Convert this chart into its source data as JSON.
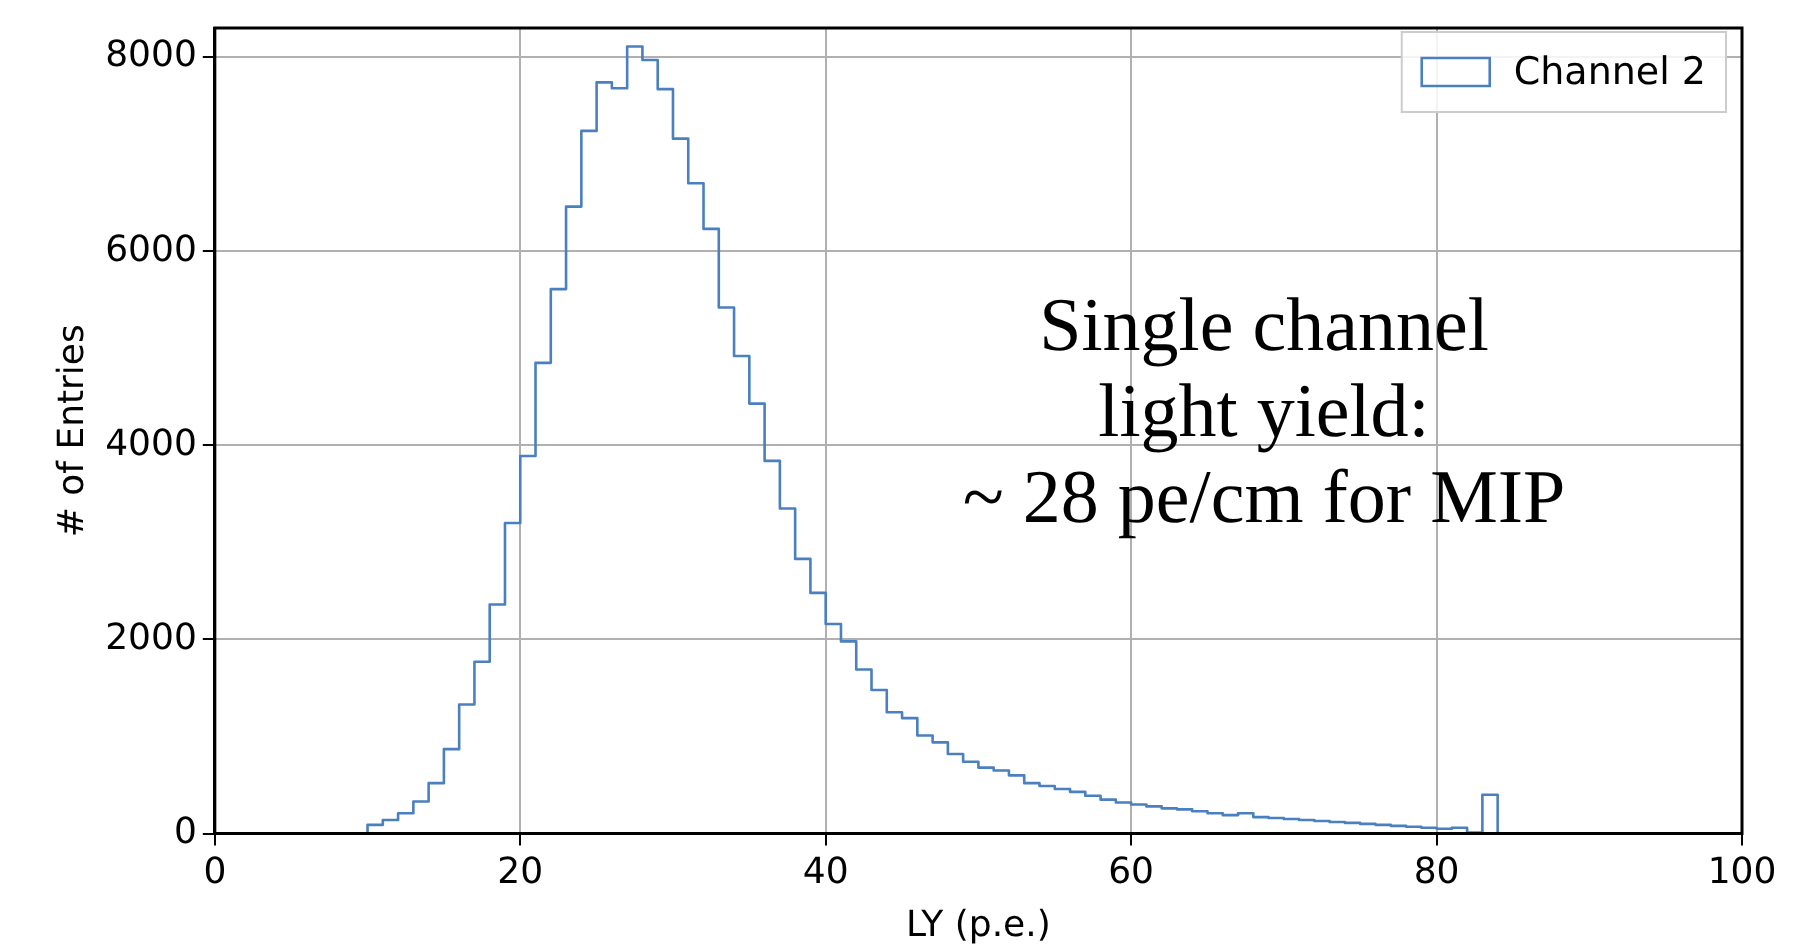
{
  "chart_data": {
    "type": "histogram",
    "xlabel": "LY (p.e.)",
    "ylabel": "# of Entries",
    "annotations": [
      "Single channel",
      "light yield:",
      "~ 28 pe/cm for MIP"
    ],
    "bins": [
      0,
      1,
      2,
      3,
      4,
      5,
      6,
      7,
      8,
      9,
      10,
      11,
      12,
      13,
      14,
      15,
      16,
      17,
      18,
      19,
      20,
      21,
      22,
      23,
      24,
      25,
      26,
      27,
      28,
      29,
      30,
      31,
      32,
      33,
      34,
      35,
      36,
      37,
      38,
      39,
      40,
      41,
      42,
      43,
      44,
      45,
      46,
      47,
      48,
      49,
      50,
      51,
      52,
      53,
      54,
      55,
      56,
      57,
      58,
      59,
      60,
      61,
      62,
      63,
      64,
      65,
      66,
      67,
      68,
      69,
      70,
      71,
      72,
      73,
      74,
      75,
      76,
      77,
      78,
      79,
      80,
      81,
      82,
      83,
      84,
      85,
      86,
      87,
      88,
      89,
      90,
      91,
      92,
      93,
      94,
      95,
      96,
      97,
      98,
      99,
      100
    ],
    "series": [
      {
        "name": "Channel 2",
        "color": "#4a7fc0",
        "values": [
          0,
          0,
          0,
          0,
          0,
          0,
          0,
          0,
          0,
          0,
          90,
          140,
          210,
          330,
          520,
          870,
          1330,
          1770,
          2360,
          3200,
          3890,
          4850,
          5610,
          6460,
          7240,
          7740,
          7680,
          8110,
          7970,
          7670,
          7160,
          6700,
          6230,
          5420,
          4920,
          4430,
          3840,
          3350,
          2830,
          2480,
          2160,
          1980,
          1690,
          1480,
          1250,
          1190,
          1010,
          940,
          820,
          740,
          680,
          650,
          600,
          520,
          490,
          460,
          430,
          390,
          350,
          320,
          300,
          280,
          260,
          250,
          230,
          210,
          190,
          210,
          170,
          160,
          150,
          140,
          130,
          120,
          110,
          100,
          90,
          80,
          70,
          60,
          50,
          60,
          10,
          400,
          0,
          0,
          0,
          0,
          0,
          0,
          0,
          0,
          0,
          0,
          0,
          0,
          0,
          0,
          0,
          0
        ]
      }
    ],
    "xlim": [
      0,
      100
    ],
    "xticks": [
      0,
      20,
      40,
      60,
      80,
      100
    ],
    "ylim": [
      0,
      8300
    ],
    "yticks": [
      0,
      2000,
      4000,
      6000,
      8000
    ],
    "grid": true,
    "legend": "top right"
  }
}
